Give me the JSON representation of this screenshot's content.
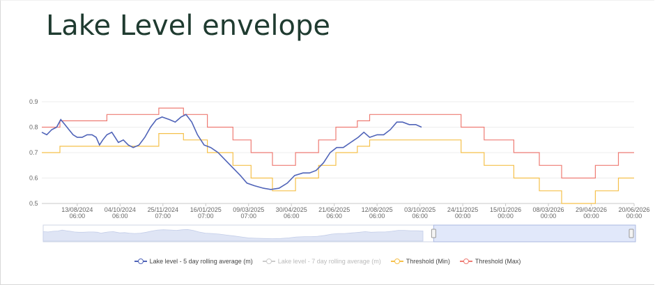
{
  "title": "Lake Level envelope",
  "chart_data": {
    "type": "line",
    "ylim": [
      0.5,
      0.9
    ],
    "yticks": [
      "0.5",
      "0.6",
      "0.7",
      "0.8",
      "0.9"
    ],
    "xlim": [
      "2024-07-01",
      "2026-06-20"
    ],
    "xticks": [
      {
        "date": "2024-08-13",
        "label1": "13/08/2024",
        "label2": "06:00"
      },
      {
        "date": "2024-10-04",
        "label1": "04/10/2024",
        "label2": "06:00"
      },
      {
        "date": "2024-11-25",
        "label1": "25/11/2024",
        "label2": "07:00"
      },
      {
        "date": "2025-01-16",
        "label1": "16/01/2025",
        "label2": "07:00"
      },
      {
        "date": "2025-03-09",
        "label1": "09/03/2025",
        "label2": "07:00"
      },
      {
        "date": "2025-04-30",
        "label1": "30/04/2025",
        "label2": "06:00"
      },
      {
        "date": "2025-06-21",
        "label1": "21/06/2025",
        "label2": "06:00"
      },
      {
        "date": "2025-08-12",
        "label1": "12/08/2025",
        "label2": "06:00"
      },
      {
        "date": "2025-10-03",
        "label1": "03/10/2025",
        "label2": "06:00"
      },
      {
        "date": "2025-11-24",
        "label1": "24/11/2025",
        "label2": "00:00"
      },
      {
        "date": "2026-01-15",
        "label1": "15/01/2026",
        "label2": "00:00"
      },
      {
        "date": "2026-03-08",
        "label1": "08/03/2026",
        "label2": "00:00"
      },
      {
        "date": "2026-04-29",
        "label1": "29/04/2026",
        "label2": "00:00"
      },
      {
        "date": "2026-06-20",
        "label1": "20/06/2026",
        "label2": "00:00"
      }
    ],
    "grid": true,
    "legend_position": "bottom",
    "series": [
      {
        "name": "Lake level - 5 day rolling average (m)",
        "color": "#4f63b8",
        "visible": true,
        "step": false,
        "points": [
          [
            "2024-07-01",
            0.78
          ],
          [
            "2024-07-07",
            0.77
          ],
          [
            "2024-07-13",
            0.79
          ],
          [
            "2024-07-19",
            0.8
          ],
          [
            "2024-07-24",
            0.83
          ],
          [
            "2024-07-29",
            0.81
          ],
          [
            "2024-08-03",
            0.79
          ],
          [
            "2024-08-08",
            0.77
          ],
          [
            "2024-08-13",
            0.76
          ],
          [
            "2024-08-19",
            0.76
          ],
          [
            "2024-08-25",
            0.77
          ],
          [
            "2024-08-31",
            0.77
          ],
          [
            "2024-09-05",
            0.76
          ],
          [
            "2024-09-09",
            0.73
          ],
          [
            "2024-09-13",
            0.75
          ],
          [
            "2024-09-18",
            0.77
          ],
          [
            "2024-09-24",
            0.78
          ],
          [
            "2024-09-28",
            0.76
          ],
          [
            "2024-10-02",
            0.74
          ],
          [
            "2024-10-08",
            0.75
          ],
          [
            "2024-10-14",
            0.73
          ],
          [
            "2024-10-20",
            0.72
          ],
          [
            "2024-10-27",
            0.73
          ],
          [
            "2024-11-03",
            0.76
          ],
          [
            "2024-11-10",
            0.8
          ],
          [
            "2024-11-17",
            0.83
          ],
          [
            "2024-11-24",
            0.84
          ],
          [
            "2024-12-03",
            0.83
          ],
          [
            "2024-12-10",
            0.82
          ],
          [
            "2024-12-17",
            0.84
          ],
          [
            "2024-12-23",
            0.85
          ],
          [
            "2024-12-30",
            0.82
          ],
          [
            "2025-01-06",
            0.77
          ],
          [
            "2025-01-14",
            0.73
          ],
          [
            "2025-01-22",
            0.72
          ],
          [
            "2025-01-31",
            0.7
          ],
          [
            "2025-02-09",
            0.67
          ],
          [
            "2025-02-18",
            0.64
          ],
          [
            "2025-02-27",
            0.61
          ],
          [
            "2025-03-07",
            0.58
          ],
          [
            "2025-03-16",
            0.57
          ],
          [
            "2025-03-27",
            0.56
          ],
          [
            "2025-04-05",
            0.555
          ],
          [
            "2025-04-15",
            0.56
          ],
          [
            "2025-04-25",
            0.58
          ],
          [
            "2025-05-04",
            0.61
          ],
          [
            "2025-05-14",
            0.62
          ],
          [
            "2025-05-22",
            0.62
          ],
          [
            "2025-05-30",
            0.63
          ],
          [
            "2025-06-08",
            0.66
          ],
          [
            "2025-06-16",
            0.7
          ],
          [
            "2025-06-24",
            0.72
          ],
          [
            "2025-07-02",
            0.72
          ],
          [
            "2025-07-11",
            0.74
          ],
          [
            "2025-07-20",
            0.76
          ],
          [
            "2025-07-27",
            0.78
          ],
          [
            "2025-08-03",
            0.76
          ],
          [
            "2025-08-12",
            0.77
          ],
          [
            "2025-08-20",
            0.77
          ],
          [
            "2025-08-28",
            0.79
          ],
          [
            "2025-09-05",
            0.82
          ],
          [
            "2025-09-12",
            0.82
          ],
          [
            "2025-09-20",
            0.81
          ],
          [
            "2025-09-28",
            0.81
          ],
          [
            "2025-10-05",
            0.8
          ]
        ]
      },
      {
        "name": "Lake level - 7 day rolling average (m)",
        "color": "#cccccc",
        "visible": false,
        "step": false,
        "points": []
      },
      {
        "name": "Threshold (Min)",
        "color": "#f5c04a",
        "visible": true,
        "step": true,
        "points": [
          [
            "2024-07-01",
            0.7
          ],
          [
            "2024-07-23",
            0.725
          ],
          [
            "2024-09-18",
            0.725
          ],
          [
            "2024-11-20",
            0.775
          ],
          [
            "2024-12-20",
            0.75
          ],
          [
            "2025-01-18",
            0.7
          ],
          [
            "2025-02-18",
            0.65
          ],
          [
            "2025-03-12",
            0.6
          ],
          [
            "2025-04-07",
            0.55
          ],
          [
            "2025-05-05",
            0.6
          ],
          [
            "2025-06-02",
            0.65
          ],
          [
            "2025-06-23",
            0.7
          ],
          [
            "2025-07-19",
            0.725
          ],
          [
            "2025-08-03",
            0.75
          ],
          [
            "2025-11-22",
            0.7
          ],
          [
            "2025-12-20",
            0.65
          ],
          [
            "2026-01-25",
            0.6
          ],
          [
            "2026-02-25",
            0.55
          ],
          [
            "2026-03-24",
            0.5
          ],
          [
            "2026-05-04",
            0.55
          ],
          [
            "2026-06-01",
            0.6
          ],
          [
            "2026-06-20",
            0.6
          ]
        ]
      },
      {
        "name": "Threshold (Max)",
        "color": "#ee7b73",
        "visible": true,
        "step": true,
        "points": [
          [
            "2024-07-01",
            0.8
          ],
          [
            "2024-07-23",
            0.825
          ],
          [
            "2024-09-18",
            0.85
          ],
          [
            "2024-11-20",
            0.875
          ],
          [
            "2024-12-20",
            0.85
          ],
          [
            "2025-01-18",
            0.8
          ],
          [
            "2025-02-18",
            0.75
          ],
          [
            "2025-03-12",
            0.7
          ],
          [
            "2025-04-07",
            0.65
          ],
          [
            "2025-05-05",
            0.7
          ],
          [
            "2025-06-02",
            0.75
          ],
          [
            "2025-06-23",
            0.8
          ],
          [
            "2025-07-19",
            0.825
          ],
          [
            "2025-08-03",
            0.85
          ],
          [
            "2025-11-22",
            0.8
          ],
          [
            "2025-12-20",
            0.75
          ],
          [
            "2026-01-25",
            0.7
          ],
          [
            "2026-02-25",
            0.65
          ],
          [
            "2026-03-24",
            0.6
          ],
          [
            "2026-05-04",
            0.65
          ],
          [
            "2026-06-01",
            0.7
          ],
          [
            "2026-06-20",
            0.7
          ]
        ]
      }
    ],
    "navigator": {
      "range_start": "2025-10-18",
      "range_end": "2026-06-20"
    }
  }
}
